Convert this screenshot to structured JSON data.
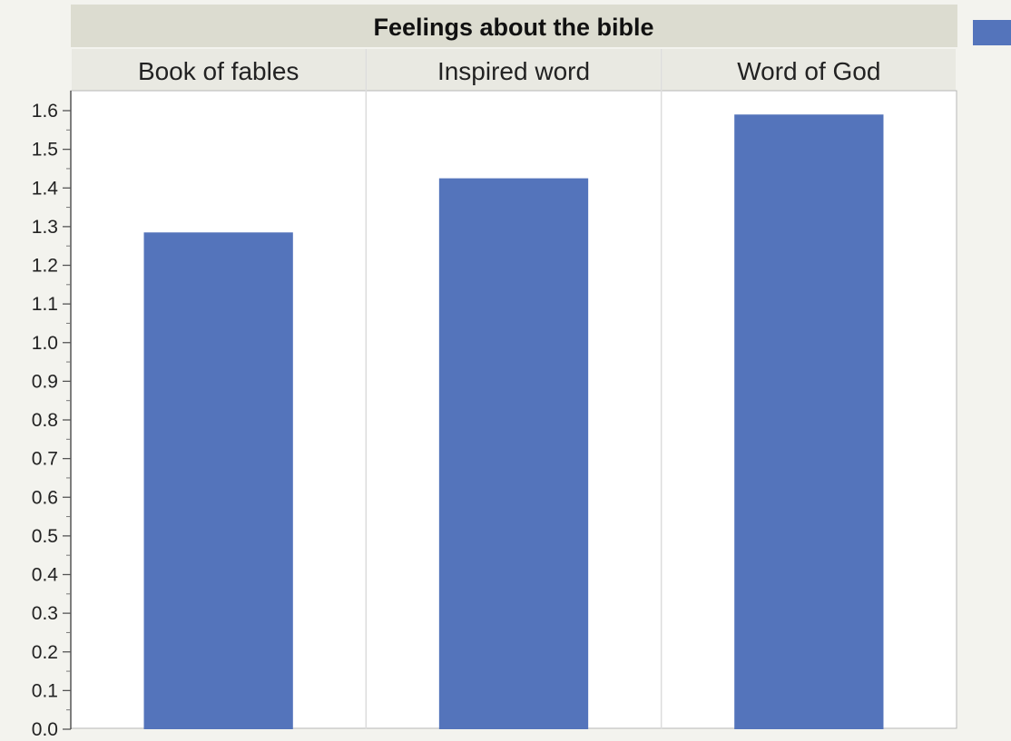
{
  "chart_data": {
    "type": "bar",
    "title": "Feelings about the bible",
    "categories": [
      "Book of fables",
      "Inspired word",
      "Word of God"
    ],
    "values": [
      1.285,
      1.425,
      1.59
    ],
    "ylim": [
      0,
      1.6
    ],
    "yticks": [
      "0.0",
      "0.1",
      "0.2",
      "0.3",
      "0.4",
      "0.5",
      "0.6",
      "0.7",
      "0.8",
      "0.9",
      "1.0",
      "1.1",
      "1.2",
      "1.3",
      "1.4",
      "1.5",
      "1.6"
    ],
    "xlabel": "",
    "ylabel": "",
    "grid": false,
    "legend_placement": "top-right",
    "colors": {
      "bar": "#5474bb",
      "header": "#dcdcd0",
      "subheader": "#e9e9e2",
      "plot_bg": "#ffffff",
      "page_bg": "#f3f3ee"
    }
  }
}
